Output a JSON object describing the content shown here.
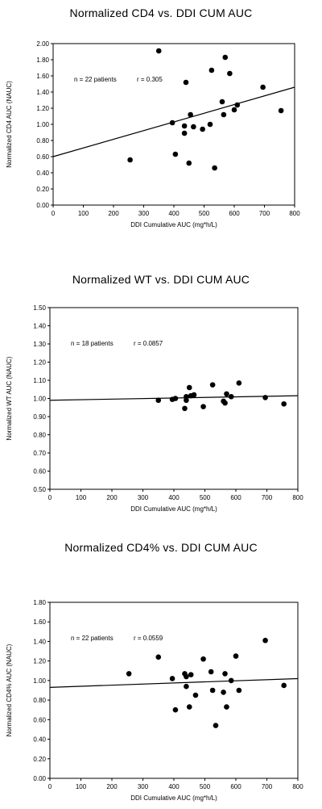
{
  "chart_data": [
    {
      "type": "scatter",
      "title": "Normalized CD4 vs. DDI CUM AUC",
      "xlabel": "DDI Cumulative AUC (mg*h/L)",
      "ylabel": "Normalized CD4 AUC (NAUC)",
      "xlim": [
        0,
        800
      ],
      "ylim": [
        0,
        2.0
      ],
      "x_ticks": [
        "0",
        "100",
        "200",
        "300",
        "400",
        "500",
        "600",
        "700",
        "800"
      ],
      "y_ticks": [
        "0.00",
        "0.20",
        "0.40",
        "0.60",
        "0.80",
        "1.00",
        "1.20",
        "1.40",
        "1.60",
        "1.80",
        "2.00"
      ],
      "annotation_n": "n = 22 patients",
      "annotation_r": "r = 0.305",
      "trendline": [
        [
          0,
          0.6
        ],
        [
          800,
          1.46
        ]
      ],
      "points": [
        [
          255,
          0.56
        ],
        [
          350,
          1.91
        ],
        [
          395,
          1.02
        ],
        [
          405,
          0.63
        ],
        [
          435,
          0.89
        ],
        [
          435,
          0.98
        ],
        [
          440,
          1.52
        ],
        [
          450,
          0.52
        ],
        [
          455,
          1.12
        ],
        [
          465,
          0.97
        ],
        [
          495,
          0.94
        ],
        [
          520,
          1.0
        ],
        [
          525,
          1.67
        ],
        [
          535,
          0.46
        ],
        [
          560,
          1.28
        ],
        [
          565,
          1.12
        ],
        [
          570,
          1.83
        ],
        [
          585,
          1.63
        ],
        [
          600,
          1.18
        ],
        [
          610,
          1.24
        ],
        [
          695,
          1.46
        ],
        [
          755,
          1.17
        ]
      ]
    },
    {
      "type": "scatter",
      "title": "Normalized WT vs. DDI CUM AUC",
      "xlabel": "DDI Cumulative AUC (mg*h/L)",
      "ylabel": "Normalized WT AUC (NAUC)",
      "xlim": [
        0,
        800
      ],
      "ylim": [
        0.5,
        1.5
      ],
      "x_ticks": [
        "0",
        "100",
        "200",
        "300",
        "400",
        "500",
        "600",
        "700",
        "800"
      ],
      "y_ticks": [
        "0.50",
        "0.60",
        "0.70",
        "0.80",
        "0.90",
        "1.00",
        "1.10",
        "1.20",
        "1.30",
        "1.40",
        "1.50"
      ],
      "annotation_n": "n = 18 patients",
      "annotation_r": "r = 0.0857",
      "trendline": [
        [
          0,
          0.99
        ],
        [
          800,
          1.015
        ]
      ],
      "points": [
        [
          350,
          0.99
        ],
        [
          395,
          0.995
        ],
        [
          405,
          1.0
        ],
        [
          435,
          0.945
        ],
        [
          440,
          1.01
        ],
        [
          440,
          0.99
        ],
        [
          450,
          1.06
        ],
        [
          455,
          1.015
        ],
        [
          465,
          1.02
        ],
        [
          495,
          0.955
        ],
        [
          525,
          1.075
        ],
        [
          560,
          0.985
        ],
        [
          565,
          0.975
        ],
        [
          570,
          1.025
        ],
        [
          585,
          1.01
        ],
        [
          610,
          1.085
        ],
        [
          695,
          1.005
        ],
        [
          755,
          0.97
        ]
      ]
    },
    {
      "type": "scatter",
      "title": "Normalized CD4% vs. DDI CUM AUC",
      "xlabel": "DDI Cumulative AUC (mg*h/L)",
      "ylabel": "Normalized CD4% AUC (NAUC)",
      "xlim": [
        0,
        800
      ],
      "ylim": [
        0,
        1.8
      ],
      "x_ticks": [
        "0",
        "100",
        "200",
        "300",
        "400",
        "500",
        "600",
        "700",
        "800"
      ],
      "y_ticks": [
        "0.00",
        "0.20",
        "0.40",
        "0.60",
        "0.80",
        "1.00",
        "1.20",
        "1.40",
        "1.60",
        "1.80"
      ],
      "annotation_n": "n = 22 patients",
      "annotation_r": "r = 0.0559",
      "trendline": [
        [
          0,
          0.93
        ],
        [
          800,
          1.02
        ]
      ],
      "points": [
        [
          255,
          1.07
        ],
        [
          350,
          1.24
        ],
        [
          395,
          1.02
        ],
        [
          405,
          0.7
        ],
        [
          435,
          1.07
        ],
        [
          440,
          1.04
        ],
        [
          440,
          0.94
        ],
        [
          450,
          0.73
        ],
        [
          455,
          1.06
        ],
        [
          470,
          0.85
        ],
        [
          495,
          1.22
        ],
        [
          520,
          1.09
        ],
        [
          525,
          0.9
        ],
        [
          535,
          0.54
        ],
        [
          560,
          0.88
        ],
        [
          565,
          1.07
        ],
        [
          570,
          0.73
        ],
        [
          585,
          1.0
        ],
        [
          600,
          1.25
        ],
        [
          610,
          0.9
        ],
        [
          695,
          1.41
        ],
        [
          755,
          0.95
        ]
      ]
    }
  ]
}
